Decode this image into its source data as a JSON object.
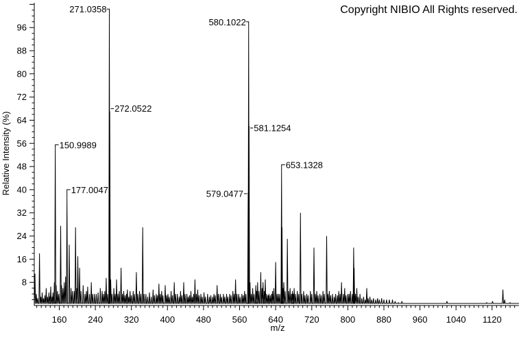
{
  "copyright": "Copyright NIBIO All Rights reserved.",
  "chart_data": {
    "type": "line",
    "subtype": "mass-spectrum-sticks",
    "title": "",
    "xlabel": "m/z",
    "ylabel": "Relative Intensity (%)",
    "xlim": [
      104,
      1179
    ],
    "ylim": [
      0,
      104
    ],
    "grid": false,
    "legend": null,
    "x_major_ticks": [
      160,
      240,
      320,
      400,
      480,
      560,
      640,
      720,
      800,
      880,
      960,
      1040,
      1120
    ],
    "x_minor_step": 10,
    "y_major_ticks": [
      8,
      16,
      24,
      32,
      40,
      48,
      56,
      64,
      72,
      80,
      88,
      96
    ],
    "y_minor_step": 2,
    "colors": {
      "line": "#000000",
      "background": "#ffffff",
      "text": "#000000"
    },
    "peaks": [
      [
        106,
        11
      ],
      [
        109,
        4
      ],
      [
        112,
        2.5
      ],
      [
        116,
        18
      ],
      [
        119,
        3
      ],
      [
        122,
        4.5
      ],
      [
        125,
        2.5
      ],
      [
        128,
        3.5
      ],
      [
        131,
        6
      ],
      [
        134,
        3
      ],
      [
        137,
        4.5
      ],
      [
        139,
        3
      ],
      [
        141,
        6.5
      ],
      [
        144,
        3
      ],
      [
        146,
        4.5
      ],
      [
        149,
        8
      ],
      [
        151,
        54
      ],
      [
        153,
        7
      ],
      [
        156,
        5
      ],
      [
        159,
        4
      ],
      [
        163,
        27.5
      ],
      [
        165,
        7
      ],
      [
        168,
        6
      ],
      [
        171,
        8
      ],
      [
        174,
        10
      ],
      [
        177,
        37
      ],
      [
        182,
        21
      ],
      [
        186,
        6
      ],
      [
        189,
        5
      ],
      [
        193,
        5
      ],
      [
        196,
        27
      ],
      [
        199,
        6
      ],
      [
        201,
        17
      ],
      [
        205,
        13
      ],
      [
        208,
        5
      ],
      [
        213,
        7
      ],
      [
        217,
        4
      ],
      [
        220,
        5
      ],
      [
        223,
        6.5
      ],
      [
        227,
        4
      ],
      [
        231,
        8
      ],
      [
        234,
        4
      ],
      [
        238,
        4
      ],
      [
        242,
        4
      ],
      [
        246,
        4.5
      ],
      [
        251,
        6
      ],
      [
        255,
        5
      ],
      [
        258,
        4
      ],
      [
        261,
        5
      ],
      [
        264,
        9.5
      ],
      [
        267,
        4
      ],
      [
        271,
        100.8
      ],
      [
        272,
        67
      ],
      [
        274,
        9
      ],
      [
        277,
        4
      ],
      [
        281,
        6
      ],
      [
        284,
        4
      ],
      [
        287,
        9
      ],
      [
        290,
        4
      ],
      [
        293,
        5
      ],
      [
        297,
        13
      ],
      [
        300,
        4
      ],
      [
        303,
        5
      ],
      [
        306,
        3.5
      ],
      [
        309,
        4
      ],
      [
        311,
        5.5
      ],
      [
        314,
        3
      ],
      [
        317,
        5
      ],
      [
        320,
        3.5
      ],
      [
        324,
        5
      ],
      [
        327,
        4
      ],
      [
        331,
        11.5
      ],
      [
        334,
        4
      ],
      [
        338,
        5
      ],
      [
        341,
        4
      ],
      [
        345,
        27
      ],
      [
        348,
        4
      ],
      [
        352,
        4
      ],
      [
        356,
        3
      ],
      [
        360,
        4.5
      ],
      [
        364,
        3
      ],
      [
        368,
        5.5
      ],
      [
        371,
        3.5
      ],
      [
        375,
        4
      ],
      [
        378,
        3.5
      ],
      [
        381,
        7.5
      ],
      [
        384,
        4
      ],
      [
        387,
        5
      ],
      [
        390,
        3.5
      ],
      [
        395,
        7
      ],
      [
        398,
        3.5
      ],
      [
        401,
        4
      ],
      [
        404,
        3
      ],
      [
        408,
        5
      ],
      [
        411,
        3.5
      ],
      [
        415,
        8
      ],
      [
        418,
        4
      ],
      [
        422,
        4
      ],
      [
        426,
        3
      ],
      [
        429,
        5
      ],
      [
        432,
        3.5
      ],
      [
        436,
        8
      ],
      [
        439,
        4
      ],
      [
        443,
        4
      ],
      [
        446,
        3
      ],
      [
        449,
        3.5
      ],
      [
        452,
        5
      ],
      [
        455,
        3
      ],
      [
        458,
        4
      ],
      [
        461,
        9
      ],
      [
        464,
        4
      ],
      [
        467,
        5.5
      ],
      [
        470,
        3.5
      ],
      [
        474,
        4
      ],
      [
        477,
        3
      ],
      [
        481,
        4.5
      ],
      [
        484,
        3
      ],
      [
        489,
        4
      ],
      [
        493,
        3
      ],
      [
        496,
        3.5
      ],
      [
        500,
        3
      ],
      [
        503,
        4
      ],
      [
        506,
        3.5
      ],
      [
        510,
        7
      ],
      [
        513,
        4
      ],
      [
        517,
        4
      ],
      [
        520,
        3
      ],
      [
        524,
        4
      ],
      [
        527,
        3
      ],
      [
        531,
        4
      ],
      [
        534,
        3
      ],
      [
        538,
        4
      ],
      [
        541,
        3.5
      ],
      [
        545,
        5
      ],
      [
        548,
        4
      ],
      [
        551,
        9
      ],
      [
        554,
        4
      ],
      [
        558,
        4
      ],
      [
        561,
        3
      ],
      [
        565,
        4
      ],
      [
        568,
        3.5
      ],
      [
        571,
        5
      ],
      [
        574,
        4
      ],
      [
        579,
        39
      ],
      [
        580,
        95.6
      ],
      [
        581,
        62
      ],
      [
        583,
        8
      ],
      [
        586,
        4
      ],
      [
        589,
        6
      ],
      [
        592,
        4
      ],
      [
        596,
        7
      ],
      [
        598,
        5
      ],
      [
        600,
        8
      ],
      [
        603,
        5
      ],
      [
        607,
        11.5
      ],
      [
        610,
        6
      ],
      [
        612,
        8
      ],
      [
        615,
        5
      ],
      [
        617,
        9
      ],
      [
        620,
        4
      ],
      [
        623,
        3.5
      ],
      [
        625,
        4
      ],
      [
        628,
        3.5
      ],
      [
        631,
        4
      ],
      [
        633,
        5
      ],
      [
        636,
        6
      ],
      [
        640,
        15
      ],
      [
        643,
        4
      ],
      [
        646,
        4
      ],
      [
        649,
        4
      ],
      [
        653,
        46
      ],
      [
        654,
        27
      ],
      [
        656,
        6
      ],
      [
        658,
        8
      ],
      [
        661,
        5
      ],
      [
        666,
        23
      ],
      [
        669,
        5
      ],
      [
        672,
        6
      ],
      [
        675,
        4
      ],
      [
        677,
        5
      ],
      [
        679,
        4
      ],
      [
        681,
        6
      ],
      [
        684,
        4
      ],
      [
        688,
        5
      ],
      [
        691,
        4
      ],
      [
        695,
        32
      ],
      [
        698,
        4
      ],
      [
        702,
        5
      ],
      [
        705,
        3.5
      ],
      [
        709,
        4
      ],
      [
        712,
        3.5
      ],
      [
        717,
        5
      ],
      [
        720,
        4
      ],
      [
        725,
        20
      ],
      [
        728,
        4
      ],
      [
        731,
        5
      ],
      [
        734,
        3.5
      ],
      [
        738,
        4
      ],
      [
        741,
        3.5
      ],
      [
        745,
        5
      ],
      [
        748,
        4
      ],
      [
        753,
        24
      ],
      [
        756,
        4
      ],
      [
        759,
        5
      ],
      [
        762,
        3.5
      ],
      [
        766,
        4
      ],
      [
        770,
        3
      ],
      [
        773,
        4
      ],
      [
        777,
        3.5
      ],
      [
        780,
        5
      ],
      [
        783,
        4
      ],
      [
        786,
        8
      ],
      [
        790,
        4
      ],
      [
        793,
        6
      ],
      [
        796,
        3.5
      ],
      [
        800,
        4
      ],
      [
        803,
        4
      ],
      [
        806,
        5
      ],
      [
        810,
        4
      ],
      [
        813,
        20
      ],
      [
        814,
        13
      ],
      [
        817,
        4
      ],
      [
        820,
        6
      ],
      [
        823,
        3
      ],
      [
        827,
        4
      ],
      [
        831,
        2.5
      ],
      [
        835,
        3
      ],
      [
        839,
        2
      ],
      [
        842,
        6
      ],
      [
        845,
        2.5
      ],
      [
        849,
        3
      ],
      [
        853,
        2
      ],
      [
        857,
        2.5
      ],
      [
        862,
        2
      ],
      [
        866,
        2.5
      ],
      [
        870,
        2
      ],
      [
        875,
        2.5
      ],
      [
        880,
        2
      ],
      [
        886,
        2
      ],
      [
        892,
        2
      ],
      [
        899,
        2
      ],
      [
        905,
        1.5
      ],
      [
        912,
        1
      ],
      [
        920,
        1.5
      ],
      [
        1020,
        1.5
      ],
      [
        1108,
        1
      ],
      [
        1121,
        1.5
      ],
      [
        1144,
        5.5
      ],
      [
        1148,
        2
      ],
      [
        1160,
        1
      ]
    ],
    "peak_labels": [
      {
        "text": "271.0358",
        "mz": 271,
        "apex_pct": 100.8,
        "anchor_pct": 102.4,
        "style": "bracket-right"
      },
      {
        "text": "272.0522",
        "mz": 272,
        "anchor_pct": 68,
        "style": "dash-left"
      },
      {
        "text": "150.9989",
        "mz": 151,
        "apex_pct": 54,
        "anchor_pct": 55.5,
        "style": "bracket-left"
      },
      {
        "text": "177.0047",
        "mz": 177,
        "apex_pct": 37,
        "anchor_pct": 40,
        "style": "bracket-left"
      },
      {
        "text": "580.1022",
        "mz": 580,
        "apex_pct": 95.6,
        "anchor_pct": 98,
        "style": "bracket-right"
      },
      {
        "text": "581.1254",
        "mz": 581,
        "anchor_pct": 61.3,
        "style": "dash-left"
      },
      {
        "text": "579.0477",
        "mz": 579,
        "anchor_pct": 38.6,
        "style": "dash-right"
      },
      {
        "text": "653.1328",
        "mz": 653,
        "apex_pct": 46,
        "anchor_pct": 48.6,
        "style": "bracket-left"
      }
    ]
  }
}
